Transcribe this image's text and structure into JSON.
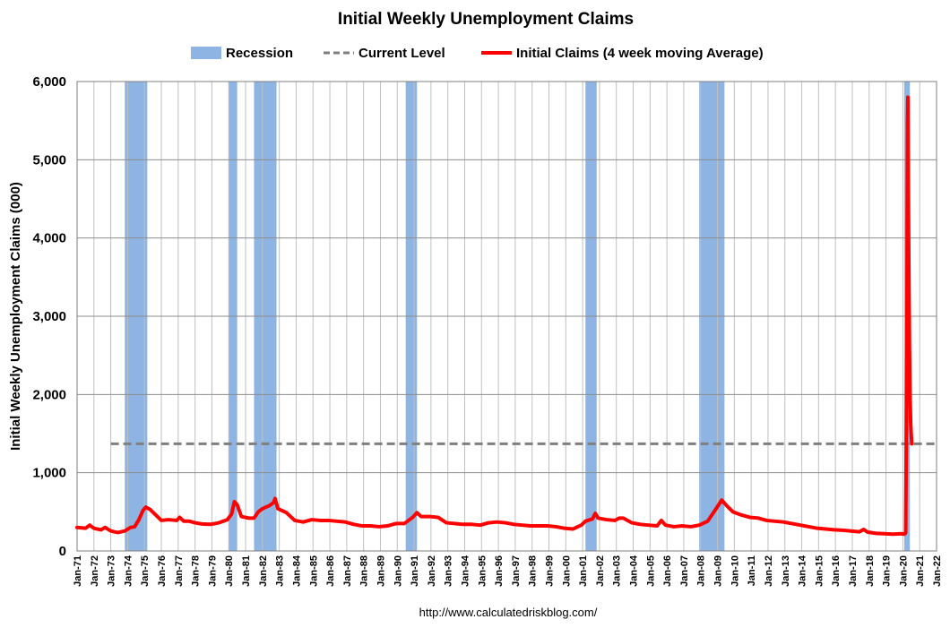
{
  "chart_data": {
    "type": "line",
    "title": "Initial Weekly Unemployment Claims",
    "ylabel": "Initial Weekly Unemployment Claims (000)",
    "xlabel": "",
    "source": "http://www.calculatedriskblog.com/",
    "ylim": [
      0,
      6000
    ],
    "y_ticks": [
      "0",
      "1,000",
      "2,000",
      "3,000",
      "4,000",
      "5,000",
      "6,000"
    ],
    "y_tick_values": [
      0,
      1000,
      2000,
      3000,
      4000,
      5000,
      6000
    ],
    "x_range": [
      "1971-01",
      "2022-01"
    ],
    "x_ticks": [
      "Jan-71",
      "Jan-72",
      "Jan-73",
      "Jan-74",
      "Jan-75",
      "Jan-76",
      "Jan-77",
      "Jan-78",
      "Jan-79",
      "Jan-80",
      "Jan-81",
      "Jan-82",
      "Jan-83",
      "Jan-84",
      "Jan-85",
      "Jan-86",
      "Jan-87",
      "Jan-88",
      "Jan-89",
      "Jan-90",
      "Jan-91",
      "Jan-92",
      "Jan-93",
      "Jan-94",
      "Jan-95",
      "Jan-96",
      "Jan-97",
      "Jan-98",
      "Jan-99",
      "Jan-00",
      "Jan-01",
      "Jan-02",
      "Jan-03",
      "Jan-04",
      "Jan-05",
      "Jan-06",
      "Jan-07",
      "Jan-08",
      "Jan-09",
      "Jan-10",
      "Jan-11",
      "Jan-12",
      "Jan-13",
      "Jan-14",
      "Jan-15",
      "Jan-16",
      "Jan-17",
      "Jan-18",
      "Jan-19",
      "Jan-20",
      "Jan-21",
      "Jan-22"
    ],
    "grid": "horizontal and vertical",
    "legend": {
      "position": "top",
      "entries": [
        {
          "label": "Recession",
          "color": "#8EB4E3",
          "kind": "area"
        },
        {
          "label": "Current Level",
          "color": "#7F7F7F",
          "kind": "dashed-line"
        },
        {
          "label": "Initial Claims (4 week moving Average)",
          "color": "#FF0000",
          "kind": "line"
        }
      ]
    },
    "recessions": [
      {
        "start": "1973-11",
        "end": "1975-03"
      },
      {
        "start": "1980-01",
        "end": "1980-07"
      },
      {
        "start": "1981-07",
        "end": "1982-11"
      },
      {
        "start": "1990-07",
        "end": "1991-03"
      },
      {
        "start": "2001-03",
        "end": "2001-11"
      },
      {
        "start": "2007-12",
        "end": "2009-06"
      },
      {
        "start": "2020-02",
        "end": "2020-06"
      }
    ],
    "current_level": {
      "value": 1370,
      "start": "1973-01",
      "end": "2022-01"
    },
    "series": [
      {
        "name": "Initial Claims (4 week moving Average)",
        "color": "#FF0000",
        "points": [
          [
            "1971-01",
            300
          ],
          [
            "1971-07",
            290
          ],
          [
            "1971-10",
            330
          ],
          [
            "1972-01",
            290
          ],
          [
            "1972-06",
            270
          ],
          [
            "1972-09",
            300
          ],
          [
            "1973-01",
            255
          ],
          [
            "1973-06",
            235
          ],
          [
            "1973-11",
            255
          ],
          [
            "1974-03",
            300
          ],
          [
            "1974-06",
            310
          ],
          [
            "1974-09",
            400
          ],
          [
            "1974-12",
            520
          ],
          [
            "1975-02",
            560
          ],
          [
            "1975-05",
            530
          ],
          [
            "1975-09",
            460
          ],
          [
            "1976-01",
            390
          ],
          [
            "1976-06",
            400
          ],
          [
            "1976-12",
            390
          ],
          [
            "1977-02",
            430
          ],
          [
            "1977-05",
            380
          ],
          [
            "1977-09",
            380
          ],
          [
            "1978-01",
            360
          ],
          [
            "1978-06",
            345
          ],
          [
            "1978-12",
            340
          ],
          [
            "1979-06",
            360
          ],
          [
            "1979-12",
            400
          ],
          [
            "1980-03",
            470
          ],
          [
            "1980-05",
            630
          ],
          [
            "1980-07",
            590
          ],
          [
            "1980-10",
            440
          ],
          [
            "1981-03",
            420
          ],
          [
            "1981-07",
            420
          ],
          [
            "1981-10",
            500
          ],
          [
            "1982-01",
            540
          ],
          [
            "1982-06",
            580
          ],
          [
            "1982-09",
            620
          ],
          [
            "1982-10",
            670
          ],
          [
            "1982-12",
            540
          ],
          [
            "1983-06",
            490
          ],
          [
            "1983-12",
            390
          ],
          [
            "1984-06",
            370
          ],
          [
            "1984-12",
            400
          ],
          [
            "1985-06",
            390
          ],
          [
            "1985-12",
            390
          ],
          [
            "1986-06",
            380
          ],
          [
            "1986-12",
            370
          ],
          [
            "1987-06",
            340
          ],
          [
            "1987-12",
            320
          ],
          [
            "1988-06",
            320
          ],
          [
            "1988-12",
            310
          ],
          [
            "1989-06",
            320
          ],
          [
            "1989-12",
            350
          ],
          [
            "1990-06",
            350
          ],
          [
            "1990-12",
            430
          ],
          [
            "1991-03",
            490
          ],
          [
            "1991-06",
            440
          ],
          [
            "1991-12",
            440
          ],
          [
            "1992-06",
            430
          ],
          [
            "1992-12",
            360
          ],
          [
            "1993-06",
            350
          ],
          [
            "1993-12",
            340
          ],
          [
            "1994-06",
            340
          ],
          [
            "1994-12",
            330
          ],
          [
            "1995-06",
            360
          ],
          [
            "1995-12",
            370
          ],
          [
            "1996-06",
            360
          ],
          [
            "1996-12",
            340
          ],
          [
            "1997-06",
            330
          ],
          [
            "1997-12",
            320
          ],
          [
            "1998-06",
            320
          ],
          [
            "1998-12",
            320
          ],
          [
            "1999-06",
            310
          ],
          [
            "1999-12",
            290
          ],
          [
            "2000-06",
            280
          ],
          [
            "2000-12",
            330
          ],
          [
            "2001-03",
            380
          ],
          [
            "2001-08",
            410
          ],
          [
            "2001-10",
            480
          ],
          [
            "2001-12",
            420
          ],
          [
            "2002-06",
            400
          ],
          [
            "2002-12",
            390
          ],
          [
            "2003-03",
            420
          ],
          [
            "2003-06",
            420
          ],
          [
            "2003-12",
            360
          ],
          [
            "2004-06",
            340
          ],
          [
            "2004-12",
            330
          ],
          [
            "2005-06",
            320
          ],
          [
            "2005-09",
            390
          ],
          [
            "2005-12",
            330
          ],
          [
            "2006-06",
            310
          ],
          [
            "2006-12",
            320
          ],
          [
            "2007-06",
            310
          ],
          [
            "2007-12",
            330
          ],
          [
            "2008-06",
            380
          ],
          [
            "2008-12",
            540
          ],
          [
            "2009-04",
            650
          ],
          [
            "2009-08",
            570
          ],
          [
            "2009-12",
            500
          ],
          [
            "2010-06",
            460
          ],
          [
            "2010-12",
            430
          ],
          [
            "2011-06",
            420
          ],
          [
            "2011-12",
            390
          ],
          [
            "2012-06",
            380
          ],
          [
            "2012-12",
            370
          ],
          [
            "2013-06",
            350
          ],
          [
            "2013-12",
            330
          ],
          [
            "2014-06",
            310
          ],
          [
            "2014-12",
            290
          ],
          [
            "2015-06",
            280
          ],
          [
            "2015-12",
            270
          ],
          [
            "2016-06",
            265
          ],
          [
            "2016-12",
            255
          ],
          [
            "2017-06",
            245
          ],
          [
            "2017-09",
            275
          ],
          [
            "2017-12",
            240
          ],
          [
            "2018-06",
            225
          ],
          [
            "2018-12",
            220
          ],
          [
            "2019-06",
            215
          ],
          [
            "2019-12",
            220
          ],
          [
            "2020-02",
            215
          ],
          [
            "2020-03",
            230
          ],
          [
            "2020-03-28",
            2600
          ],
          [
            "2020-04-04",
            4300
          ],
          [
            "2020-04-11",
            5500
          ],
          [
            "2020-04-18",
            5800
          ],
          [
            "2020-04-25",
            5030
          ],
          [
            "2020-05-09",
            3600
          ],
          [
            "2020-05-23",
            2600
          ],
          [
            "2020-06-06",
            1950
          ],
          [
            "2020-06-20",
            1600
          ],
          [
            "2020-07-04",
            1440
          ],
          [
            "2020-07-11",
            1370
          ]
        ]
      }
    ]
  }
}
